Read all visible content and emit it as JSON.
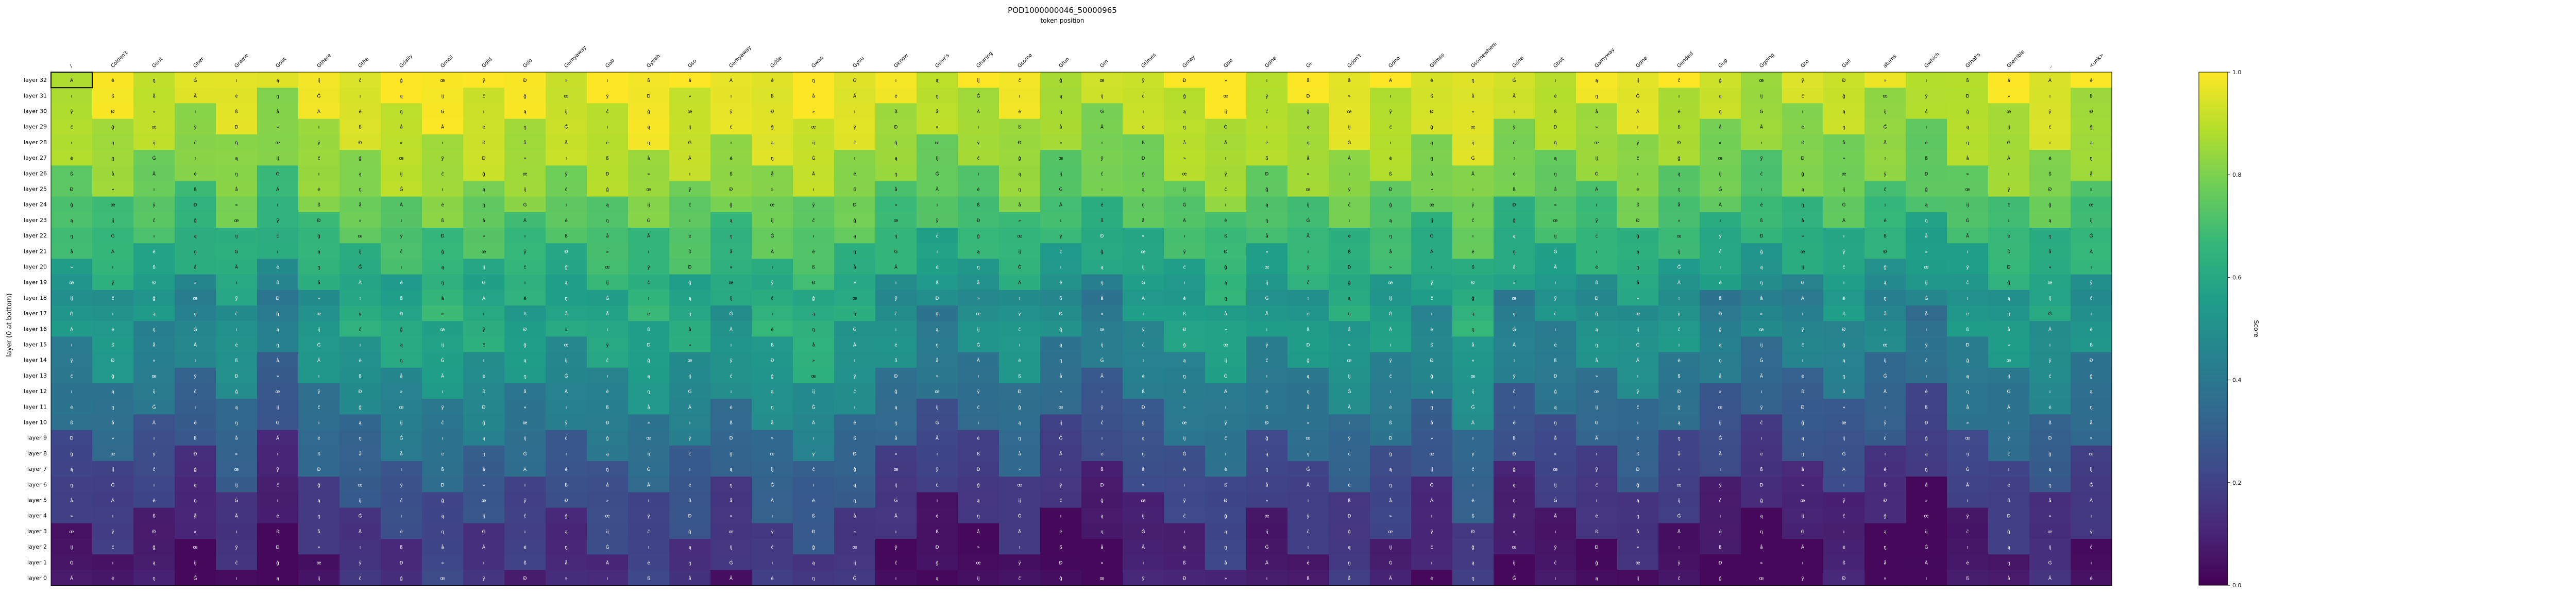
{
  "chart_data": {
    "type": "heatmap",
    "title": "POD1000000046_50000965",
    "subtitle": "token position",
    "ylabel": "layer (0 at bottom)",
    "colorbar": {
      "label": "Score",
      "range": [
        0,
        1
      ],
      "ticks": [
        "0.0",
        "0.2",
        "0.4",
        "0.6",
        "0.8",
        "1.0"
      ]
    },
    "colormap": [
      "#440154",
      "#482878",
      "#3e4989",
      "#31688e",
      "#26828e",
      "#1f9e89",
      "#35b779",
      "#6ece58",
      "#b5de2b",
      "#fde725"
    ],
    "columns": [
      "/",
      "Colden't",
      "Gout",
      "Gher",
      "Grame",
      "Gout",
      "Gthere",
      "Gthe",
      "Gdaily",
      "Gmail",
      "Gdid",
      "Gdo",
      "Gamyaway",
      "Gab",
      "Gyeah",
      "Gso",
      "Gamyaway",
      "Gdtie",
      "Gwas",
      "Gyou",
      "Gknow",
      "Gshe's",
      "Gharing",
      "Gsome",
      "Gfun",
      "Gm",
      "Gtimes",
      "Gmay",
      "Gbe",
      "Gdne",
      "Gi",
      "Gdon't",
      "Gdne",
      "Gtimes",
      "Gsomewhere",
      "Gdne",
      "Gbut",
      "Gamyway",
      "Gdne",
      "Gended",
      "Gup",
      "Ggoing",
      "Gto",
      "Gall",
      "aturns",
      "Gwhich",
      "Gthat's",
      "Gterrible",
      "..",
      "<unk>"
    ],
    "rows": [
      "layer 32",
      "layer 31",
      "layer 30",
      "layer 29",
      "layer 28",
      "layer 27",
      "layer 26",
      "layer 25",
      "layer 24",
      "layer 23",
      "layer 22",
      "layer 21",
      "layer 20",
      "layer 19",
      "layer 18",
      "layer 17",
      "layer 16",
      "layer 15",
      "layer 14",
      "layer 13",
      "layer 12",
      "layer 11",
      "layer 10",
      "layer 9",
      "layer 8",
      "layer 7",
      "layer 6",
      "layer 5",
      "layer 4",
      "layer 3",
      "layer 2",
      "layer 1",
      "layer 0"
    ],
    "row_levels": [
      0.95,
      0.92,
      0.9,
      0.88,
      0.85,
      0.83,
      0.8,
      0.78,
      0.72,
      0.7,
      0.65,
      0.63,
      0.6,
      0.55,
      0.5,
      0.5,
      0.5,
      0.48,
      0.45,
      0.42,
      0.38,
      0.35,
      0.32,
      0.28,
      0.25,
      0.22,
      0.18,
      0.15,
      0.13,
      0.1,
      0.08,
      0.06,
      0.05
    ],
    "col_adjust": [
      0,
      0.05,
      0,
      -0.05,
      0.05,
      -0.1,
      0.05,
      0.08,
      0.1,
      0.12,
      0.1,
      0.08,
      0.05,
      0.1,
      0.12,
      0.1,
      0.05,
      0.12,
      0.15,
      0.08,
      0,
      -0.05,
      -0.02,
      0.05,
      -0.05,
      -0.08,
      0,
      0.05,
      0.1,
      0,
      0.05,
      0.08,
      0.05,
      0,
      0.12,
      -0.05,
      -0.02,
      0,
      0.05,
      0,
      -0.05,
      -0.08,
      -0.05,
      0,
      -0.05,
      -0.1,
      0,
      0.05,
      0.05,
      0
    ],
    "cell_labels": [
      "Ä",
      "Ð",
      "ĳ",
      "ė",
      "»",
      "ĉ",
      "ŋ",
      "ı",
      "ĝ",
      "Ġ",
      "ß",
      "œ",
      "ı",
      "å",
      "ÿ",
      "ą"
    ],
    "highlight": {
      "row": "layer 32",
      "column": "/"
    }
  }
}
